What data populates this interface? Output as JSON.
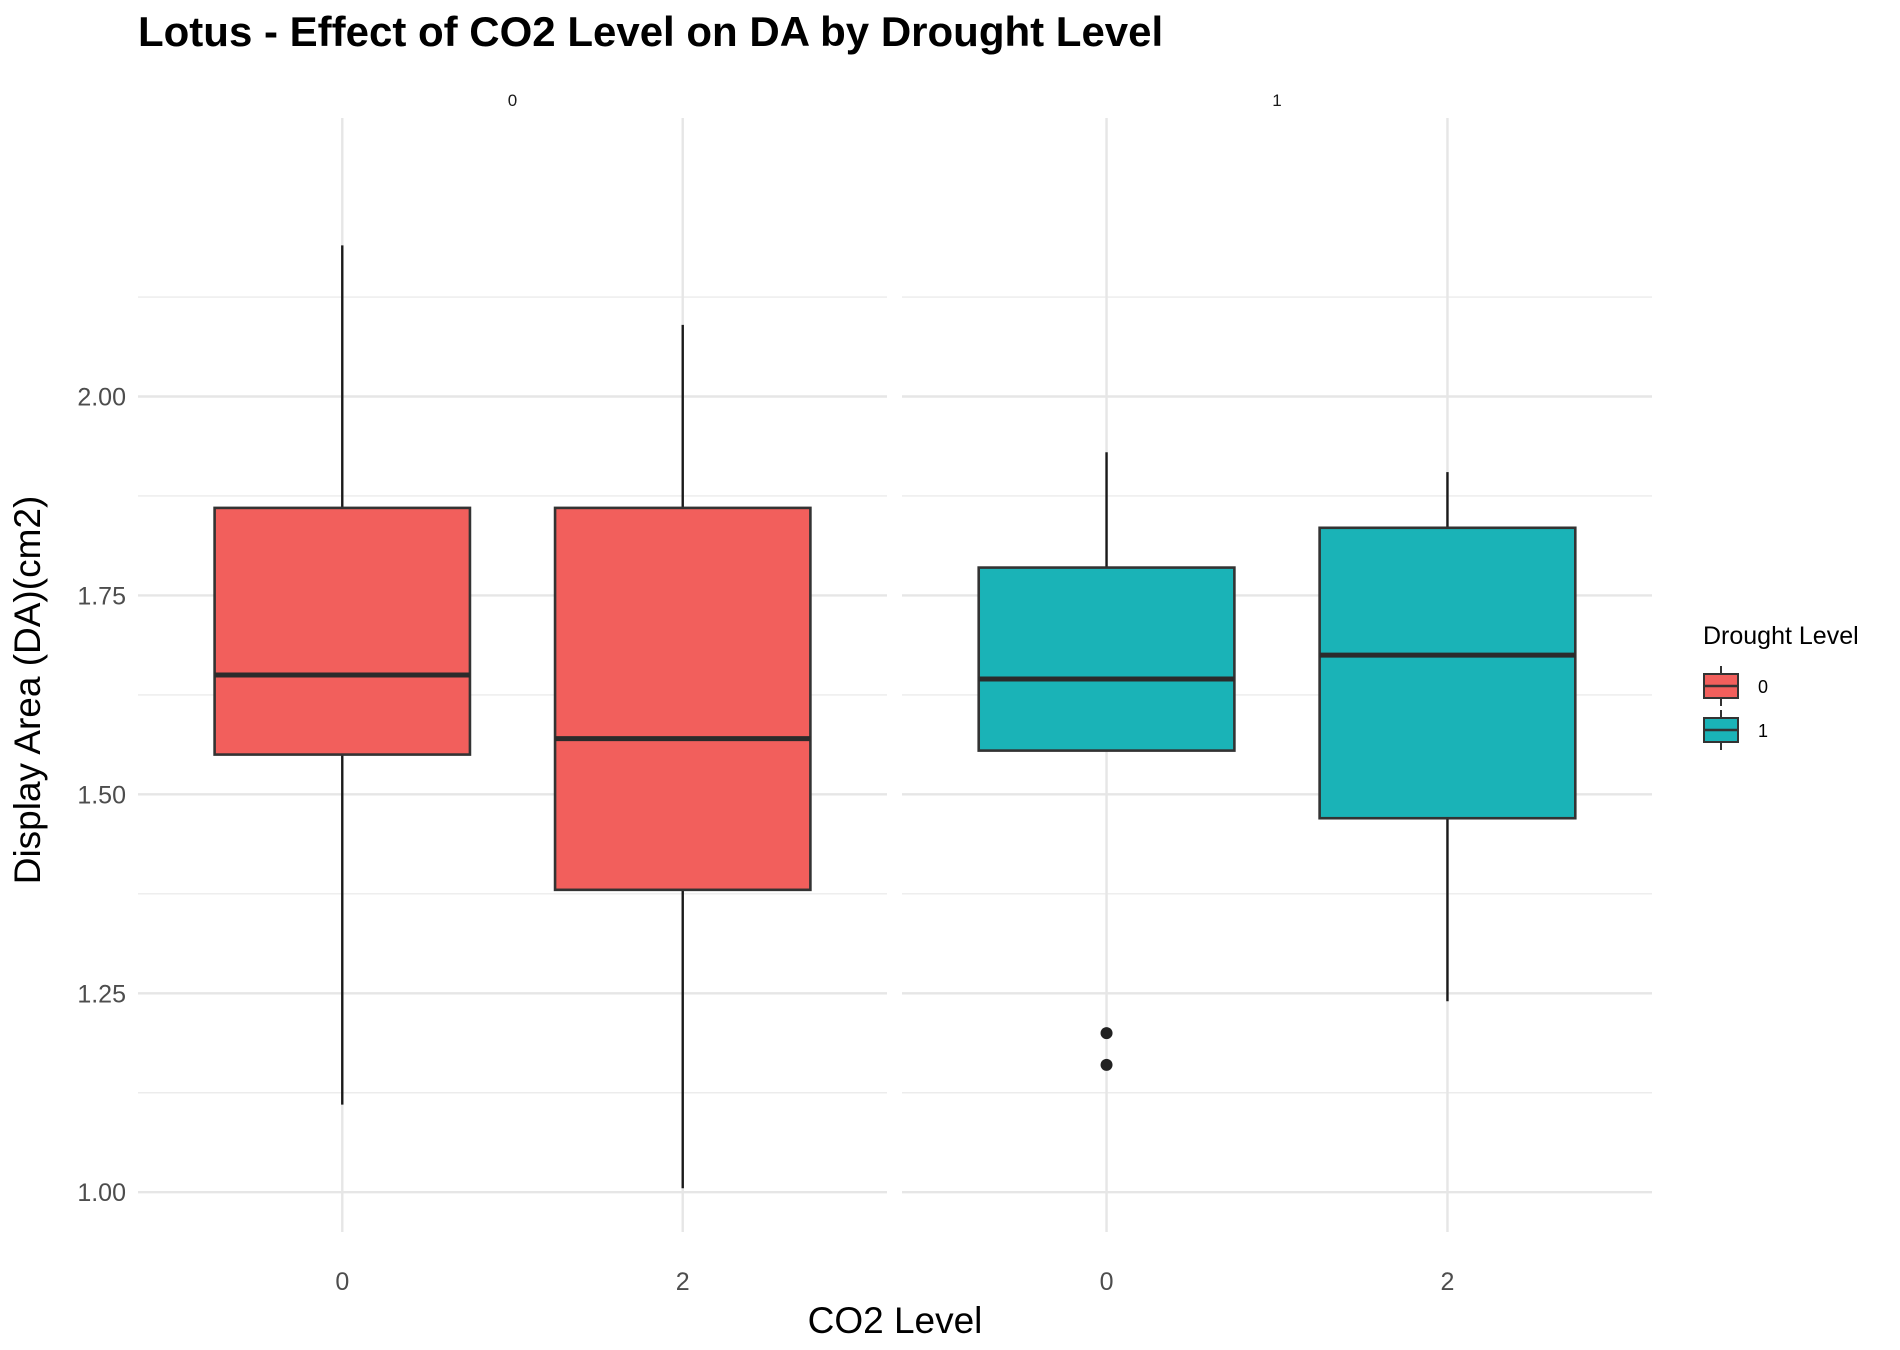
{
  "chart_data": {
    "type": "boxplot",
    "title": "Lotus - Effect of CO2 Level on DA by Drought Level",
    "xlabel": "CO2 Level",
    "ylabel": "Display Area (DA)(cm2)",
    "ylim": [
      0.95,
      2.35
    ],
    "yticks": [
      "1.00",
      "1.25",
      "1.50",
      "1.75",
      "2.00"
    ],
    "ytick_values": [
      1.0,
      1.25,
      1.5,
      1.75,
      2.0
    ],
    "grid": true,
    "legend": {
      "title": "Drought Level",
      "position": "right",
      "entries": [
        {
          "label": "0",
          "color": "#F25F5C"
        },
        {
          "label": "1",
          "color": "#1AB3B7"
        }
      ]
    },
    "facets": [
      {
        "label": "0",
        "color": "#F25F5C",
        "categories": [
          "0",
          "2"
        ],
        "boxes": [
          {
            "category": "0",
            "whisker_low": 1.11,
            "q1": 1.55,
            "median": 1.65,
            "q3": 1.86,
            "whisker_high": 2.19,
            "outliers": []
          },
          {
            "category": "2",
            "whisker_low": 1.005,
            "q1": 1.38,
            "median": 1.57,
            "q3": 1.86,
            "whisker_high": 2.09,
            "outliers": []
          }
        ]
      },
      {
        "label": "1",
        "color": "#1AB3B7",
        "categories": [
          "0",
          "2"
        ],
        "boxes": [
          {
            "category": "0",
            "whisker_low": 1.555,
            "q1": 1.555,
            "median": 1.645,
            "q3": 1.785,
            "whisker_high": 1.93,
            "outliers": [
              1.2,
              1.16
            ]
          },
          {
            "category": "2",
            "whisker_low": 1.24,
            "q1": 1.47,
            "median": 1.675,
            "q3": 1.835,
            "whisker_high": 1.905,
            "outliers": []
          }
        ]
      }
    ]
  }
}
